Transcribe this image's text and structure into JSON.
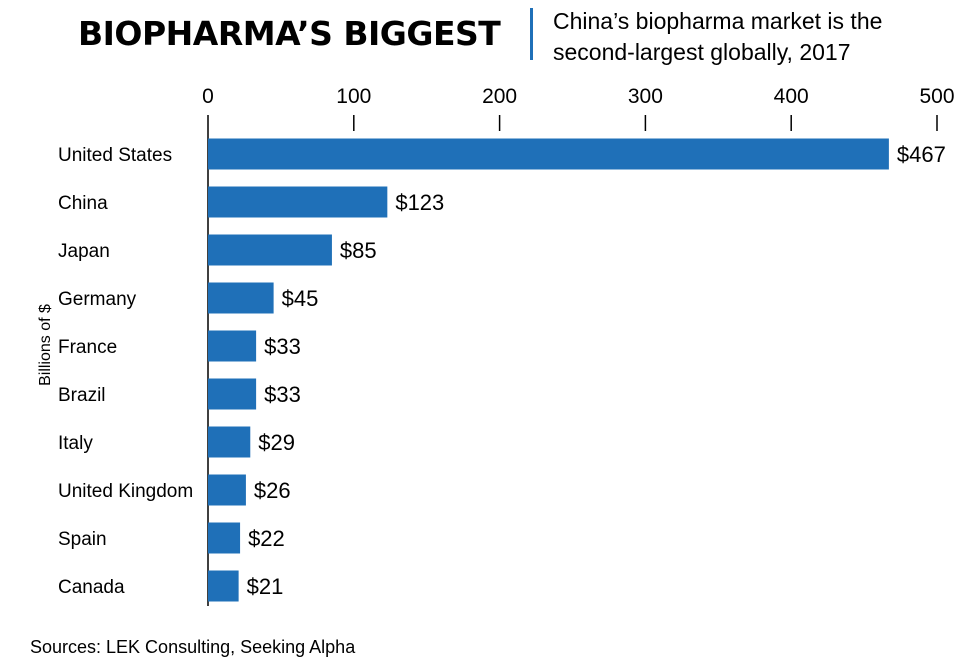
{
  "header": {
    "title": "BIOPHARMA’S BIGGEST",
    "subtitle": "China’s biopharma market is the second-largest globally, 2017"
  },
  "footer": {
    "source": "Sources: LEK Consulting, Seeking Alpha"
  },
  "colors": {
    "bar": "#1f70b8",
    "divider": "#1f70b8",
    "axis": "#000000"
  },
  "chart_data": {
    "type": "bar",
    "orientation": "horizontal",
    "title": "BIOPHARMA’S BIGGEST",
    "subtitle": "China’s biopharma market is the second-largest globally, 2017",
    "xlabel": "",
    "ylabel": "Billions of $",
    "xlim": [
      0,
      500
    ],
    "xticks": [
      0,
      100,
      200,
      300,
      400,
      500
    ],
    "tick_position": "top",
    "grid": false,
    "legend": "none",
    "categories": [
      "United States",
      "China",
      "Japan",
      "Germany",
      "France",
      "Brazil",
      "Italy",
      "United Kingdom",
      "Spain",
      "Canada"
    ],
    "values": [
      467,
      123,
      85,
      45,
      33,
      33,
      29,
      26,
      22,
      21
    ],
    "value_labels": [
      "$467",
      "$123",
      "$85",
      "$45",
      "$33",
      "$33",
      "$29",
      "$26",
      "$22",
      "$21"
    ]
  }
}
